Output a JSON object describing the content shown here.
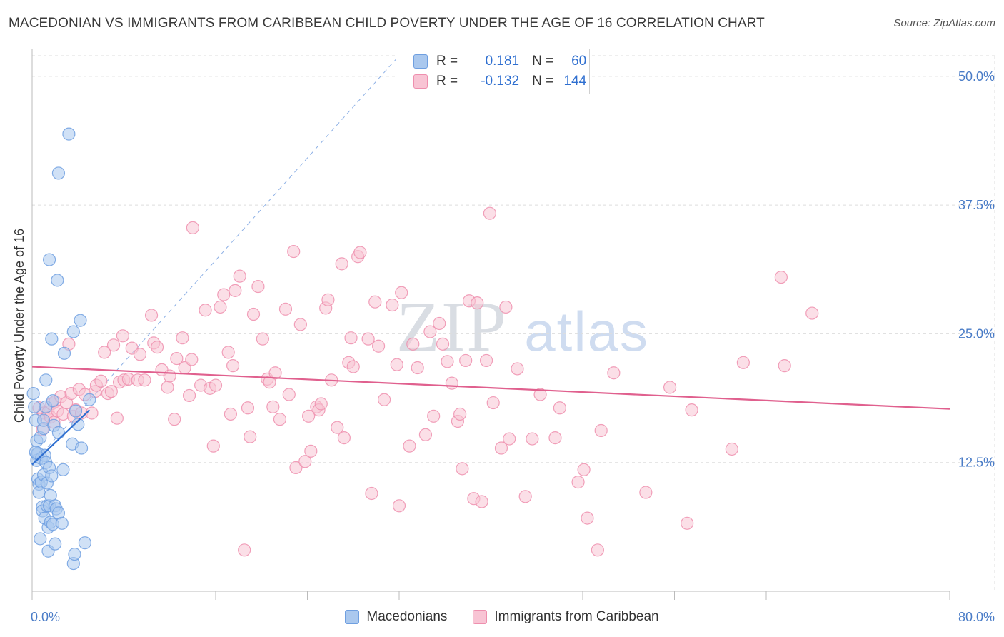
{
  "title": "MACEDONIAN VS IMMIGRANTS FROM CARIBBEAN CHILD POVERTY UNDER THE AGE OF 16 CORRELATION CHART",
  "source": "Source: ZipAtlas.com",
  "watermark": {
    "zip": "ZIP",
    "atlas": "atlas"
  },
  "legend": {
    "rows": [
      {
        "r_label": "R =",
        "r_value": "0.181",
        "n_label": "N =",
        "n_value": "60",
        "color": "#aac8ee",
        "border": "#6f9fe0"
      },
      {
        "r_label": "R =",
        "r_value": "-0.132",
        "n_label": "N =",
        "n_value": "144",
        "color": "#f8c4d4",
        "border": "#ee8fae"
      }
    ]
  },
  "bottom_legend": [
    {
      "label": "Macedonians",
      "color": "#aac8ee",
      "border": "#6f9fe0"
    },
    {
      "label": "Immigrants from Caribbean",
      "color": "#f8c4d4",
      "border": "#ee8fae"
    }
  ],
  "chart_data": {
    "type": "scatter",
    "title": "MACEDONIAN VS IMMIGRANTS FROM CARIBBEAN CHILD POVERTY UNDER THE AGE OF 16 CORRELATION CHART",
    "xlabel": "",
    "ylabel": "Child Poverty Under the Age of 16",
    "xlim": [
      0,
      80
    ],
    "ylim": [
      0,
      52
    ],
    "x_tick_labels": [
      {
        "value": 0,
        "label": "0.0%"
      },
      {
        "value": 80,
        "label": "80.0%"
      }
    ],
    "y_tick_labels": [
      {
        "value": 12.5,
        "label": "12.5%"
      },
      {
        "value": 25,
        "label": "25.0%"
      },
      {
        "value": 37.5,
        "label": "37.5%"
      },
      {
        "value": 50,
        "label": "50.0%"
      }
    ],
    "colors": {
      "blue_fill": "#aac8ee",
      "blue_stroke": "#6f9fe0",
      "blue_line": "#2f6fd0",
      "pink_fill": "#f8c4d4",
      "pink_stroke": "#ee8fae",
      "pink_line": "#e0608e",
      "grid": "#dddddd"
    },
    "series": [
      {
        "name": "Macedonians",
        "points": [
          [
            0.1,
            19.2
          ],
          [
            0.2,
            17.9
          ],
          [
            0.3,
            16.6
          ],
          [
            0.4,
            14.6
          ],
          [
            0.4,
            13.3
          ],
          [
            0.4,
            12.7
          ],
          [
            0.5,
            10.9
          ],
          [
            0.6,
            10.4
          ],
          [
            0.6,
            9.6
          ],
          [
            0.5,
            13.4
          ],
          [
            0.7,
            14.9
          ],
          [
            0.8,
            12.9
          ],
          [
            0.8,
            10.6
          ],
          [
            0.9,
            8.2
          ],
          [
            0.7,
            5.1
          ],
          [
            0.9,
            7.8
          ],
          [
            1.0,
            11.3
          ],
          [
            1.0,
            15.8
          ],
          [
            1.0,
            16.6
          ],
          [
            1.1,
            13.2
          ],
          [
            1.1,
            7.1
          ],
          [
            1.2,
            20.5
          ],
          [
            1.2,
            17.9
          ],
          [
            1.2,
            12.5
          ],
          [
            1.3,
            10.5
          ],
          [
            1.3,
            8.3
          ],
          [
            1.4,
            6.2
          ],
          [
            1.4,
            3.9
          ],
          [
            1.5,
            12.0
          ],
          [
            1.5,
            8.3
          ],
          [
            1.6,
            6.7
          ],
          [
            1.6,
            9.3
          ],
          [
            1.7,
            11.2
          ],
          [
            1.7,
            24.5
          ],
          [
            1.8,
            6.5
          ],
          [
            1.8,
            18.5
          ],
          [
            1.9,
            16.1
          ],
          [
            1.5,
            32.2
          ],
          [
            2.0,
            4.6
          ],
          [
            2.0,
            8.3
          ],
          [
            2.1,
            8.0
          ],
          [
            2.2,
            30.2
          ],
          [
            2.3,
            15.4
          ],
          [
            2.3,
            7.6
          ],
          [
            2.3,
            40.6
          ],
          [
            2.6,
            6.6
          ],
          [
            2.7,
            11.8
          ],
          [
            2.8,
            23.1
          ],
          [
            3.2,
            44.4
          ],
          [
            3.5,
            14.3
          ],
          [
            3.6,
            2.7
          ],
          [
            3.6,
            25.2
          ],
          [
            3.7,
            3.6
          ],
          [
            3.8,
            17.5
          ],
          [
            4.0,
            16.2
          ],
          [
            4.2,
            26.3
          ],
          [
            4.3,
            13.9
          ],
          [
            4.6,
            4.7
          ],
          [
            5.0,
            18.6
          ],
          [
            0.3,
            13.5
          ]
        ]
      },
      {
        "name": "Immigrants from Caribbean",
        "points": [
          [
            0.6,
            17.8
          ],
          [
            0.9,
            15.7
          ],
          [
            1.0,
            17.3
          ],
          [
            1.2,
            16.8
          ],
          [
            1.4,
            17.4
          ],
          [
            1.6,
            16.9
          ],
          [
            1.7,
            18.2
          ],
          [
            1.9,
            16.4
          ],
          [
            2.0,
            18.4
          ],
          [
            2.2,
            17.5
          ],
          [
            2.5,
            18.9
          ],
          [
            2.7,
            17.2
          ],
          [
            3.0,
            18.3
          ],
          [
            3.2,
            24.0
          ],
          [
            3.4,
            19.2
          ],
          [
            3.6,
            17.0
          ],
          [
            3.8,
            17.6
          ],
          [
            4.1,
            19.6
          ],
          [
            4.3,
            17.3
          ],
          [
            4.6,
            19.1
          ],
          [
            5.2,
            17.3
          ],
          [
            5.5,
            19.4
          ],
          [
            5.6,
            20.0
          ],
          [
            6.0,
            20.4
          ],
          [
            6.3,
            23.2
          ],
          [
            6.6,
            19.2
          ],
          [
            6.9,
            19.4
          ],
          [
            7.1,
            23.9
          ],
          [
            7.4,
            16.8
          ],
          [
            7.6,
            20.3
          ],
          [
            7.9,
            24.8
          ],
          [
            8.0,
            20.5
          ],
          [
            8.4,
            20.6
          ],
          [
            8.7,
            23.6
          ],
          [
            9.2,
            20.5
          ],
          [
            9.4,
            23.0
          ],
          [
            9.8,
            20.5
          ],
          [
            10.4,
            26.8
          ],
          [
            10.6,
            24.1
          ],
          [
            10.9,
            23.7
          ],
          [
            11.3,
            21.5
          ],
          [
            11.8,
            19.8
          ],
          [
            12.0,
            20.9
          ],
          [
            12.4,
            16.7
          ],
          [
            12.6,
            22.6
          ],
          [
            13.1,
            24.6
          ],
          [
            13.3,
            21.7
          ],
          [
            13.7,
            19.0
          ],
          [
            13.9,
            22.5
          ],
          [
            14.0,
            35.3
          ],
          [
            14.7,
            20.0
          ],
          [
            15.1,
            27.3
          ],
          [
            15.5,
            19.7
          ],
          [
            15.8,
            14.1
          ],
          [
            16.0,
            20.0
          ],
          [
            16.4,
            27.6
          ],
          [
            16.7,
            28.8
          ],
          [
            17.1,
            23.2
          ],
          [
            17.3,
            17.2
          ],
          [
            17.5,
            21.9
          ],
          [
            17.7,
            29.2
          ],
          [
            18.1,
            30.6
          ],
          [
            18.5,
            4.0
          ],
          [
            18.8,
            17.8
          ],
          [
            19.0,
            15.0
          ],
          [
            19.3,
            26.9
          ],
          [
            19.7,
            29.6
          ],
          [
            20.1,
            24.5
          ],
          [
            20.5,
            20.6
          ],
          [
            20.7,
            20.3
          ],
          [
            21.0,
            17.9
          ],
          [
            21.2,
            21.2
          ],
          [
            21.6,
            16.7
          ],
          [
            22.1,
            27.4
          ],
          [
            22.4,
            19.1
          ],
          [
            22.8,
            33.0
          ],
          [
            23.0,
            12.0
          ],
          [
            23.4,
            25.9
          ],
          [
            23.8,
            12.6
          ],
          [
            24.1,
            17.0
          ],
          [
            24.3,
            13.6
          ],
          [
            24.8,
            17.9
          ],
          [
            25.0,
            17.6
          ],
          [
            25.2,
            18.2
          ],
          [
            25.6,
            27.5
          ],
          [
            25.8,
            28.3
          ],
          [
            26.1,
            20.5
          ],
          [
            26.6,
            15.9
          ],
          [
            27.0,
            31.8
          ],
          [
            27.2,
            14.9
          ],
          [
            27.6,
            22.2
          ],
          [
            27.8,
            24.6
          ],
          [
            28.0,
            21.8
          ],
          [
            28.4,
            32.5
          ],
          [
            28.6,
            32.9
          ],
          [
            29.3,
            24.5
          ],
          [
            29.6,
            9.5
          ],
          [
            29.9,
            28.1
          ],
          [
            30.2,
            23.8
          ],
          [
            30.7,
            18.6
          ],
          [
            31.4,
            27.8
          ],
          [
            31.8,
            22.0
          ],
          [
            32.0,
            8.3
          ],
          [
            32.2,
            29.0
          ],
          [
            32.9,
            14.1
          ],
          [
            33.2,
            24.0
          ],
          [
            33.6,
            21.7
          ],
          [
            34.3,
            15.2
          ],
          [
            34.7,
            25.2
          ],
          [
            35.0,
            17.0
          ],
          [
            35.5,
            26.0
          ],
          [
            35.8,
            24.0
          ],
          [
            36.2,
            22.3
          ],
          [
            36.6,
            20.2
          ],
          [
            37.1,
            16.5
          ],
          [
            37.3,
            17.2
          ],
          [
            37.5,
            11.9
          ],
          [
            37.8,
            22.4
          ],
          [
            38.1,
            28.2
          ],
          [
            38.5,
            9.0
          ],
          [
            38.8,
            28.0
          ],
          [
            39.2,
            8.7
          ],
          [
            39.6,
            22.4
          ],
          [
            39.9,
            36.7
          ],
          [
            40.2,
            18.3
          ],
          [
            40.9,
            13.9
          ],
          [
            41.3,
            27.6
          ],
          [
            41.6,
            14.8
          ],
          [
            42.3,
            21.6
          ],
          [
            43.0,
            9.2
          ],
          [
            43.6,
            14.8
          ],
          [
            44.3,
            19.1
          ],
          [
            45.6,
            14.9
          ],
          [
            46.0,
            17.8
          ],
          [
            47.6,
            10.6
          ],
          [
            48.1,
            11.8
          ],
          [
            48.4,
            7.1
          ],
          [
            49.3,
            4.0
          ],
          [
            49.6,
            15.6
          ],
          [
            50.7,
            21.2
          ],
          [
            53.5,
            9.6
          ],
          [
            55.6,
            19.8
          ],
          [
            57.1,
            6.6
          ],
          [
            57.5,
            17.6
          ],
          [
            61.0,
            13.8
          ],
          [
            62.0,
            22.2
          ],
          [
            65.3,
            30.5
          ],
          [
            65.6,
            21.9
          ],
          [
            68.0,
            27.0
          ]
        ]
      }
    ],
    "trend_lines": [
      {
        "series": "Macedonians",
        "style": "solid",
        "from": [
          0,
          12.3
        ],
        "to": [
          5,
          17.6
        ]
      },
      {
        "series": "Macedonians",
        "style": "dashed",
        "from": [
          0,
          12.3
        ],
        "to": [
          32,
          52
        ]
      },
      {
        "series": "Immigrants from Caribbean",
        "style": "solid",
        "from": [
          0,
          21.8
        ],
        "to": [
          80,
          17.7
        ]
      }
    ]
  }
}
